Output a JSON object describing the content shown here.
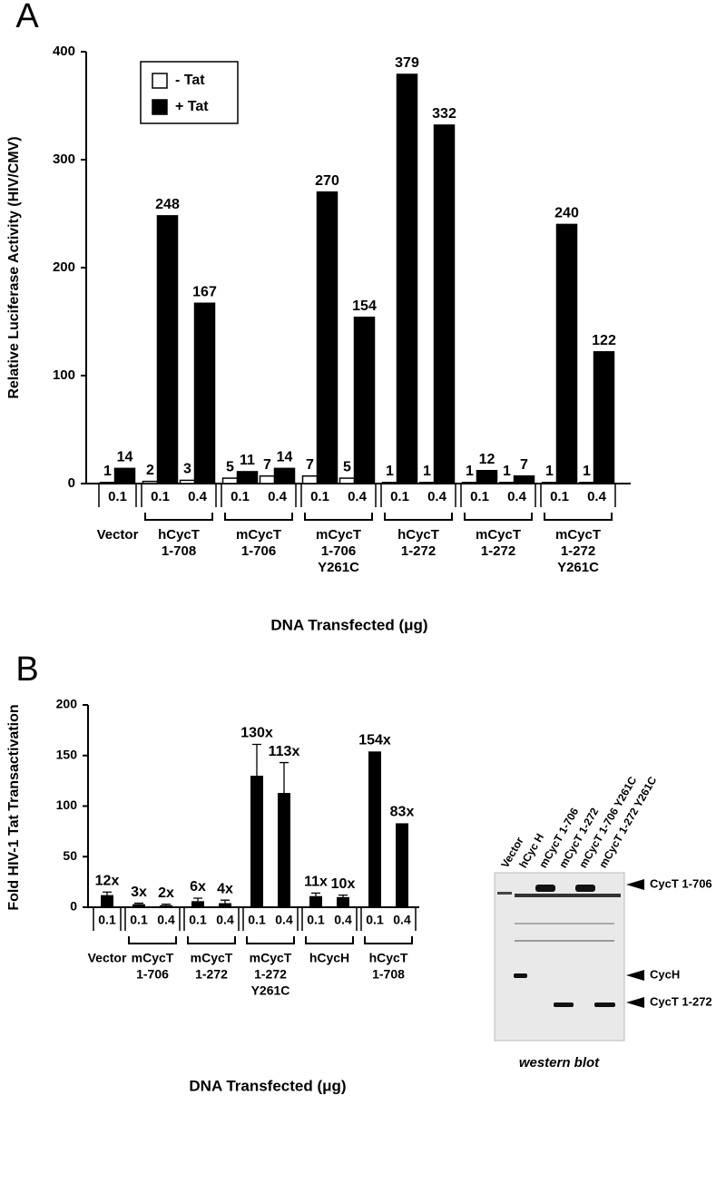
{
  "chart_data": [
    {
      "type": "bar",
      "panel": "A",
      "y_label": "Relative Luciferase Activity (HIV/CMV)",
      "x_label": "DNA Transfected (μg)",
      "groups": [
        {
          "name": [
            "Vector"
          ],
          "categories": [
            "0.1"
          ]
        },
        {
          "name": [
            "hCycT",
            "1-708"
          ],
          "categories": [
            "0.1",
            "0.4"
          ]
        },
        {
          "name": [
            "mCycT",
            "1-706"
          ],
          "categories": [
            "0.1",
            "0.4"
          ]
        },
        {
          "name": [
            "mCycT",
            "1-706",
            "Y261C"
          ],
          "categories": [
            "0.1",
            "0.4"
          ]
        },
        {
          "name": [
            "hCycT",
            "1-272"
          ],
          "categories": [
            "0.1",
            "0.4"
          ]
        },
        {
          "name": [
            "mCycT",
            "1-272"
          ],
          "categories": [
            "0.1",
            "0.4"
          ]
        },
        {
          "name": [
            "mCycT",
            "1-272",
            "Y261C"
          ],
          "categories": [
            "0.1",
            "0.4"
          ]
        }
      ],
      "series": [
        {
          "name": "- Tat",
          "color": "#ffffff",
          "values": [
            1,
            2,
            3,
            5,
            7,
            7,
            5,
            1,
            1,
            1,
            1,
            1,
            1
          ]
        },
        {
          "name": "+ Tat",
          "color": "#000000",
          "values": [
            14,
            248,
            167,
            11,
            14,
            270,
            154,
            379,
            332,
            12,
            7,
            240,
            122
          ]
        }
      ],
      "ylim": [
        0,
        400
      ],
      "yticks": [
        0,
        100,
        200,
        300,
        400
      ],
      "legend": "upper left"
    },
    {
      "type": "bar",
      "panel": "B",
      "y_label": "Fold HIV-1 Tat Transactivation",
      "x_label": "DNA Transfected (μg)",
      "groups": [
        {
          "name": [
            "Vector"
          ],
          "categories": [
            "0.1"
          ]
        },
        {
          "name": [
            "mCycT",
            "1-706"
          ],
          "categories": [
            "0.1",
            "0.4"
          ]
        },
        {
          "name": [
            "mCycT",
            "1-272"
          ],
          "categories": [
            "0.1",
            "0.4"
          ]
        },
        {
          "name": [
            "mCycT",
            "1-272",
            "Y261C"
          ],
          "categories": [
            "0.1",
            "0.4"
          ]
        },
        {
          "name": [
            "hCycH"
          ],
          "categories": [
            "0.1",
            "0.4"
          ]
        },
        {
          "name": [
            "hCycT",
            "1-708"
          ],
          "categories": [
            "0.1",
            "0.4"
          ]
        }
      ],
      "values": [
        12,
        3,
        2,
        6,
        4,
        130,
        113,
        11,
        10,
        154,
        83
      ],
      "value_labels": [
        "12x",
        "3x",
        "2x",
        "6x",
        "4x",
        "130x",
        "113x",
        "11x",
        "10x",
        "154x",
        "83x"
      ],
      "errors": [
        3,
        1,
        1,
        3,
        3,
        31,
        30,
        3,
        2,
        null,
        null
      ],
      "color": "#000000",
      "ylim": [
        0,
        200
      ],
      "yticks": [
        0,
        50,
        100,
        150,
        200
      ]
    }
  ],
  "western_blot": {
    "lanes": [
      "Vector",
      "hCyc H",
      "mCycT 1-706",
      "mCycT 1-272",
      "mCycT 1-706 Y261C",
      "mCycT 1-272 Y261C"
    ],
    "bands": [
      "CycT 1-706",
      "CycH",
      "CycT 1-272"
    ],
    "caption": "western blot"
  }
}
